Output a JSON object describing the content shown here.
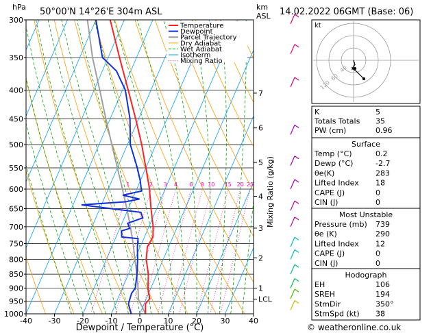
{
  "header": {
    "location": "50°00'N  14°26'E  304m  ASL",
    "datetime": "14.02.2022  06GMT  (Base: 06)",
    "hpa_label": "hPa",
    "km_label": "km",
    "asl_label": "ASL",
    "kt_label": "kt",
    "credit": "© weatheronline.co.uk"
  },
  "legend": [
    "Temperature",
    "Dewpoint",
    "Parcel Trajectory",
    "Dry Adiabat",
    "Wet Adiabat",
    "Isotherm",
    "Mixing Ratio"
  ],
  "colors": {
    "temperature": "#ff2020",
    "dewpoint": "#1030e0",
    "parcel": "#a0a0a0",
    "dry_adiabat": "#ff9900",
    "wet_adiabat": "#00a000",
    "isotherm": "#00a0ff",
    "mixing_ratio": "#ff00aa"
  },
  "chart_data": {
    "type": "skew-t",
    "xlabel": "Dewpoint / Temperature (°C)",
    "x_ticks": [
      "-40",
      "-30",
      "-20",
      "-10",
      "0",
      "10",
      "20",
      "30",
      "40"
    ],
    "p_ticks": [
      "300",
      "350",
      "400",
      "450",
      "500",
      "550",
      "600",
      "650",
      "700",
      "750",
      "800",
      "850",
      "900",
      "950",
      "1000"
    ],
    "km_ticks": [
      {
        "label": "7",
        "p": 405
      },
      {
        "label": "6",
        "p": 467
      },
      {
        "label": "5",
        "p": 538
      },
      {
        "label": "4",
        "p": 618
      },
      {
        "label": "3",
        "p": 704
      },
      {
        "label": "2",
        "p": 795
      },
      {
        "label": "1",
        "p": 900
      },
      {
        "label": "LCL",
        "p": 942
      }
    ],
    "mixing_ratio_label": "Mixing Ratio (g/kg)",
    "mixing_ratio_values": [
      "1",
      "2",
      "3",
      "4",
      "6",
      "8",
      "10",
      "15",
      "20",
      "25"
    ],
    "temperature_profile": [
      {
        "p": 1000,
        "t": 2
      },
      {
        "p": 960,
        "t": 0.5
      },
      {
        "p": 940,
        "t": 1.2
      },
      {
        "p": 900,
        "t": -1
      },
      {
        "p": 850,
        "t": -3
      },
      {
        "p": 800,
        "t": -6
      },
      {
        "p": 760,
        "t": -7.5
      },
      {
        "p": 730,
        "t": -7
      },
      {
        "p": 700,
        "t": -8.5
      },
      {
        "p": 650,
        "t": -12
      },
      {
        "p": 600,
        "t": -15.5
      },
      {
        "p": 550,
        "t": -20
      },
      {
        "p": 500,
        "t": -25
      },
      {
        "p": 470,
        "t": -28.5
      },
      {
        "p": 450,
        "t": -31
      },
      {
        "p": 400,
        "t": -38
      },
      {
        "p": 350,
        "t": -46
      },
      {
        "p": 300,
        "t": -55
      }
    ],
    "dewpoint_profile": [
      {
        "p": 1000,
        "t": -3
      },
      {
        "p": 960,
        "t": -5.5
      },
      {
        "p": 920,
        "t": -6
      },
      {
        "p": 900,
        "t": -5.5
      },
      {
        "p": 850,
        "t": -7
      },
      {
        "p": 800,
        "t": -9
      },
      {
        "p": 760,
        "t": -11
      },
      {
        "p": 735,
        "t": -12
      },
      {
        "p": 730,
        "t": -18
      },
      {
        "p": 712,
        "t": -19
      },
      {
        "p": 705,
        "t": -16.5
      },
      {
        "p": 690,
        "t": -18
      },
      {
        "p": 675,
        "t": -13.5
      },
      {
        "p": 660,
        "t": -15
      },
      {
        "p": 650,
        "t": -26
      },
      {
        "p": 640,
        "t": -37
      },
      {
        "p": 632,
        "t": -22
      },
      {
        "p": 625,
        "t": -17.5
      },
      {
        "p": 615,
        "t": -24
      },
      {
        "p": 605,
        "t": -18
      },
      {
        "p": 580,
        "t": -20
      },
      {
        "p": 550,
        "t": -23
      },
      {
        "p": 500,
        "t": -29
      },
      {
        "p": 450,
        "t": -33
      },
      {
        "p": 400,
        "t": -39
      },
      {
        "p": 370,
        "t": -45
      },
      {
        "p": 350,
        "t": -52
      },
      {
        "p": 300,
        "t": -60
      }
    ],
    "parcel_profile": [
      {
        "p": 1000,
        "t": 2
      },
      {
        "p": 942,
        "t": -2.7
      },
      {
        "p": 900,
        "t": -4.5
      },
      {
        "p": 850,
        "t": -7
      },
      {
        "p": 800,
        "t": -10
      },
      {
        "p": 750,
        "t": -13
      },
      {
        "p": 700,
        "t": -16.5
      },
      {
        "p": 650,
        "t": -20.5
      },
      {
        "p": 600,
        "t": -25
      },
      {
        "p": 550,
        "t": -30
      },
      {
        "p": 500,
        "t": -35.5
      },
      {
        "p": 450,
        "t": -41.5
      },
      {
        "p": 400,
        "t": -48
      },
      {
        "p": 350,
        "t": -55.5
      },
      {
        "p": 300,
        "t": -63
      }
    ]
  },
  "hodograph": {
    "rings": [
      "40",
      "60",
      "120"
    ]
  },
  "indices": {
    "top": [
      {
        "label": "K",
        "value": "5"
      },
      {
        "label": "Totals Totals",
        "value": "35"
      },
      {
        "label": "PW (cm)",
        "value": "0.96"
      }
    ],
    "surface": {
      "title": "Surface",
      "rows": [
        {
          "label": "Temp (°C)",
          "value": "0.2"
        },
        {
          "label": "Dewp (°C)",
          "value": "-2.7"
        },
        {
          "label": "θe(K)",
          "value": "283"
        },
        {
          "label": "Lifted Index",
          "value": "18"
        },
        {
          "label": "CAPE (J)",
          "value": "0"
        },
        {
          "label": "CIN (J)",
          "value": "0"
        }
      ]
    },
    "most_unstable": {
      "title": "Most Unstable",
      "rows": [
        {
          "label": "Pressure (mb)",
          "value": "739"
        },
        {
          "label": "θe (K)",
          "value": "290"
        },
        {
          "label": "Lifted Index",
          "value": "12"
        },
        {
          "label": "CAPE (J)",
          "value": "0"
        },
        {
          "label": "CIN (J)",
          "value": "0"
        }
      ]
    },
    "hodograph": {
      "title": "Hodograph",
      "rows": [
        {
          "label": "EH",
          "value": "106"
        },
        {
          "label": "SREH",
          "value": "194"
        },
        {
          "label": "StmDir",
          "value": "350°"
        },
        {
          "label": "StmSpd (kt)",
          "value": "38"
        }
      ]
    }
  }
}
